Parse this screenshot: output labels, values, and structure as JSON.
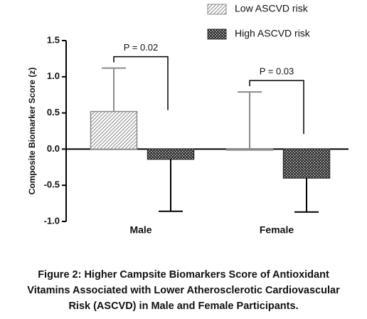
{
  "chart_data": {
    "type": "bar",
    "y_label": "Composite Biomarker Score (z)",
    "categories": [
      "Male",
      "Female"
    ],
    "series": [
      {
        "name": "Low ASCVD risk",
        "color": "#8a8a8a",
        "pattern": "diagonal",
        "values": [
          0.52,
          0.0
        ],
        "errors": [
          0.6,
          0.79
        ]
      },
      {
        "name": "High ASCVD risk",
        "color": "#333333",
        "pattern": "crosshatch",
        "values": [
          -0.14,
          -0.4
        ],
        "errors": [
          0.72,
          0.47
        ]
      }
    ],
    "ylim": [
      -1.0,
      1.5
    ],
    "yticks": [
      {
        "value": -1.0,
        "label": "-1.0"
      },
      -0.5,
      {
        "value": 0.0,
        "label": "0.0"
      },
      0.5,
      {
        "value": 1.0,
        "label": "1.0"
      },
      1.5
    ],
    "legend": "top-right",
    "annotations": [
      "P = 0.02",
      "P = 0.03"
    ]
  },
  "caption": [
    "Figure 2: Higher Campsite Biomarkers Score of Antioxidant",
    "Vitamins Associated with Lower Atherosclerotic Cardiovascular",
    "Risk (ASCVD) in Male and Female Participants."
  ]
}
